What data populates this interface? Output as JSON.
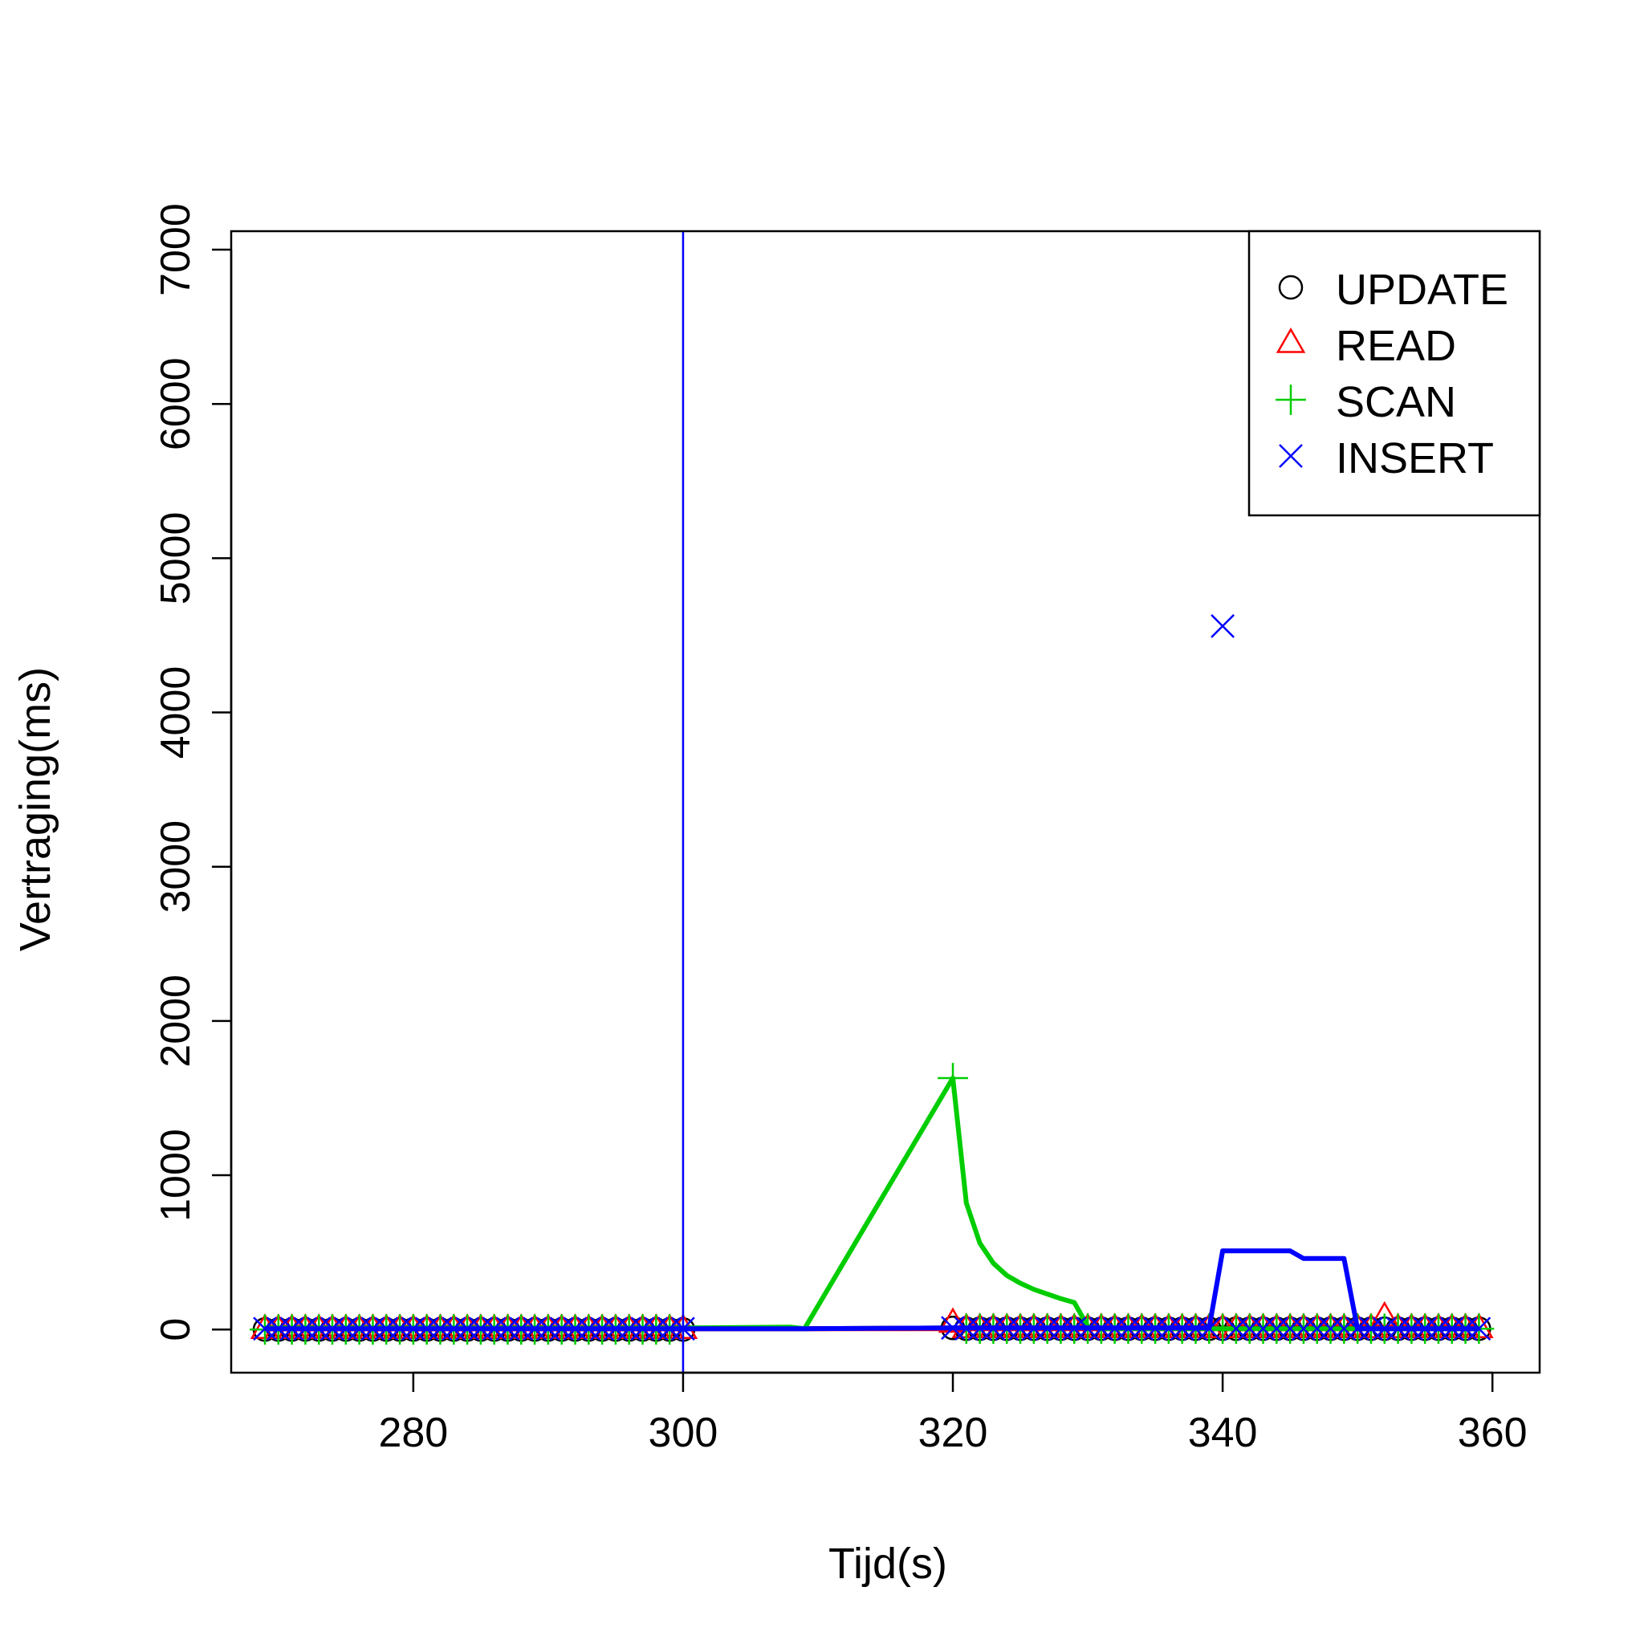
{
  "chart_data": {
    "type": "line",
    "title": "",
    "xlabel": "Tijd(s)",
    "ylabel": "Vertraging(ms)",
    "xlim": [
      266.5,
      363.5
    ],
    "ylim": [
      -280,
      7120
    ],
    "x_ticks": [
      280,
      300,
      320,
      340,
      360
    ],
    "y_ticks": [
      0,
      1000,
      2000,
      3000,
      4000,
      5000,
      6000,
      7000
    ],
    "x_tick_labels": [
      "280",
      "300",
      "320",
      "340",
      "360"
    ],
    "y_tick_labels": [
      "0",
      "1000",
      "2000",
      "3000",
      "4000",
      "5000",
      "6000",
      "7000"
    ],
    "grid": false,
    "legend_position": "top-right",
    "vline": {
      "x": 300,
      "color": "#0000ff"
    },
    "series": [
      {
        "name": "UPDATE",
        "color": "#000000",
        "marker": "circle",
        "points": [
          [
            269,
            0
          ],
          [
            270,
            0
          ],
          [
            271,
            0
          ],
          [
            272,
            0
          ],
          [
            273,
            0
          ],
          [
            274,
            0
          ],
          [
            275,
            0
          ],
          [
            276,
            0
          ],
          [
            277,
            0
          ],
          [
            278,
            0
          ],
          [
            279,
            0
          ],
          [
            280,
            0
          ],
          [
            281,
            0
          ],
          [
            282,
            0
          ],
          [
            283,
            0
          ],
          [
            284,
            0
          ],
          [
            285,
            0
          ],
          [
            286,
            0
          ],
          [
            287,
            0
          ],
          [
            288,
            0
          ],
          [
            289,
            0
          ],
          [
            290,
            0
          ],
          [
            291,
            0
          ],
          [
            292,
            0
          ],
          [
            293,
            0
          ],
          [
            294,
            0
          ],
          [
            295,
            0
          ],
          [
            296,
            0
          ],
          [
            297,
            0
          ],
          [
            298,
            0
          ],
          [
            299,
            0
          ],
          [
            300,
            0
          ],
          [
            320,
            10
          ],
          [
            321,
            5
          ],
          [
            322,
            5
          ],
          [
            323,
            5
          ],
          [
            324,
            5
          ],
          [
            325,
            5
          ],
          [
            326,
            5
          ],
          [
            327,
            5
          ],
          [
            328,
            5
          ],
          [
            329,
            5
          ],
          [
            330,
            5
          ],
          [
            331,
            5
          ],
          [
            332,
            5
          ],
          [
            333,
            5
          ],
          [
            334,
            5
          ],
          [
            335,
            5
          ],
          [
            336,
            5
          ],
          [
            337,
            5
          ],
          [
            338,
            5
          ],
          [
            339,
            5
          ],
          [
            340,
            5
          ],
          [
            341,
            5
          ],
          [
            342,
            5
          ],
          [
            343,
            5
          ],
          [
            344,
            5
          ],
          [
            345,
            5
          ],
          [
            346,
            5
          ],
          [
            347,
            5
          ],
          [
            348,
            5
          ],
          [
            349,
            5
          ],
          [
            350,
            5
          ],
          [
            351,
            5
          ],
          [
            352,
            5
          ],
          [
            353,
            5
          ],
          [
            354,
            5
          ],
          [
            355,
            5
          ],
          [
            356,
            5
          ],
          [
            357,
            5
          ],
          [
            358,
            5
          ],
          [
            359,
            5
          ]
        ],
        "line": [
          [
            269,
            5
          ],
          [
            300,
            5
          ],
          [
            309,
            5
          ],
          [
            320,
            10
          ],
          [
            339,
            10
          ],
          [
            340,
            10
          ],
          [
            359,
            10
          ]
        ]
      },
      {
        "name": "READ",
        "color": "#ff0000",
        "marker": "triangle",
        "points": [
          [
            269,
            0
          ],
          [
            270,
            0
          ],
          [
            271,
            0
          ],
          [
            272,
            0
          ],
          [
            273,
            0
          ],
          [
            274,
            0
          ],
          [
            275,
            0
          ],
          [
            276,
            0
          ],
          [
            277,
            0
          ],
          [
            278,
            0
          ],
          [
            279,
            0
          ],
          [
            280,
            0
          ],
          [
            281,
            0
          ],
          [
            282,
            0
          ],
          [
            283,
            0
          ],
          [
            284,
            0
          ],
          [
            285,
            0
          ],
          [
            286,
            0
          ],
          [
            287,
            0
          ],
          [
            288,
            0
          ],
          [
            289,
            0
          ],
          [
            290,
            0
          ],
          [
            291,
            0
          ],
          [
            292,
            0
          ],
          [
            293,
            0
          ],
          [
            294,
            0
          ],
          [
            295,
            0
          ],
          [
            296,
            0
          ],
          [
            297,
            0
          ],
          [
            298,
            0
          ],
          [
            299,
            0
          ],
          [
            300,
            0
          ],
          [
            320,
            40
          ],
          [
            321,
            5
          ],
          [
            322,
            5
          ],
          [
            323,
            5
          ],
          [
            324,
            5
          ],
          [
            325,
            5
          ],
          [
            326,
            5
          ],
          [
            327,
            5
          ],
          [
            328,
            5
          ],
          [
            329,
            5
          ],
          [
            330,
            5
          ],
          [
            331,
            5
          ],
          [
            332,
            5
          ],
          [
            333,
            5
          ],
          [
            334,
            5
          ],
          [
            335,
            5
          ],
          [
            336,
            5
          ],
          [
            337,
            5
          ],
          [
            338,
            5
          ],
          [
            339,
            5
          ],
          [
            340,
            5
          ],
          [
            341,
            5
          ],
          [
            342,
            5
          ],
          [
            343,
            5
          ],
          [
            344,
            5
          ],
          [
            345,
            5
          ],
          [
            346,
            5
          ],
          [
            347,
            5
          ],
          [
            348,
            5
          ],
          [
            349,
            5
          ],
          [
            350,
            5
          ],
          [
            351,
            5
          ],
          [
            352,
            80
          ],
          [
            353,
            5
          ],
          [
            354,
            5
          ],
          [
            355,
            5
          ],
          [
            356,
            5
          ],
          [
            357,
            5
          ],
          [
            358,
            5
          ],
          [
            359,
            5
          ]
        ],
        "line": [
          [
            269,
            5
          ],
          [
            300,
            5
          ],
          [
            309,
            5
          ],
          [
            320,
            5
          ],
          [
            359,
            5
          ]
        ]
      },
      {
        "name": "SCAN",
        "color": "#00cd00",
        "marker": "plus",
        "points": [
          [
            269,
            0
          ],
          [
            270,
            0
          ],
          [
            271,
            0
          ],
          [
            272,
            0
          ],
          [
            273,
            0
          ],
          [
            274,
            0
          ],
          [
            275,
            0
          ],
          [
            276,
            0
          ],
          [
            277,
            0
          ],
          [
            278,
            0
          ],
          [
            279,
            0
          ],
          [
            280,
            0
          ],
          [
            281,
            0
          ],
          [
            282,
            0
          ],
          [
            283,
            0
          ],
          [
            284,
            0
          ],
          [
            285,
            0
          ],
          [
            286,
            0
          ],
          [
            287,
            0
          ],
          [
            288,
            0
          ],
          [
            289,
            0
          ],
          [
            290,
            0
          ],
          [
            291,
            0
          ],
          [
            292,
            0
          ],
          [
            293,
            0
          ],
          [
            294,
            0
          ],
          [
            295,
            0
          ],
          [
            296,
            0
          ],
          [
            297,
            0
          ],
          [
            298,
            0
          ],
          [
            299,
            0
          ],
          [
            300,
            0
          ],
          [
            320,
            1630
          ],
          [
            321,
            5
          ],
          [
            322,
            5
          ],
          [
            323,
            5
          ],
          [
            324,
            5
          ],
          [
            325,
            5
          ],
          [
            326,
            5
          ],
          [
            327,
            5
          ],
          [
            328,
            5
          ],
          [
            329,
            5
          ],
          [
            330,
            5
          ],
          [
            331,
            5
          ],
          [
            332,
            5
          ],
          [
            333,
            5
          ],
          [
            334,
            5
          ],
          [
            335,
            5
          ],
          [
            336,
            5
          ],
          [
            337,
            5
          ],
          [
            338,
            5
          ],
          [
            339,
            5
          ],
          [
            340,
            5
          ],
          [
            341,
            5
          ],
          [
            342,
            5
          ],
          [
            343,
            5
          ],
          [
            344,
            5
          ],
          [
            345,
            5
          ],
          [
            346,
            5
          ],
          [
            347,
            5
          ],
          [
            348,
            5
          ],
          [
            349,
            5
          ],
          [
            350,
            5
          ],
          [
            351,
            5
          ],
          [
            352,
            5
          ],
          [
            353,
            5
          ],
          [
            354,
            5
          ],
          [
            355,
            5
          ],
          [
            356,
            5
          ],
          [
            357,
            5
          ],
          [
            358,
            5
          ],
          [
            359,
            5
          ]
        ],
        "line": [
          [
            269,
            10
          ],
          [
            300,
            10
          ],
          [
            308,
            15
          ],
          [
            309,
            5
          ],
          [
            320,
            1630
          ],
          [
            321,
            820
          ],
          [
            322,
            560
          ],
          [
            323,
            430
          ],
          [
            324,
            350
          ],
          [
            325,
            300
          ],
          [
            326,
            260
          ],
          [
            327,
            230
          ],
          [
            328,
            200
          ],
          [
            329,
            175
          ],
          [
            330,
            20
          ],
          [
            331,
            5
          ],
          [
            359,
            5
          ]
        ]
      },
      {
        "name": "INSERT",
        "color": "#0000ff",
        "marker": "x",
        "points": [
          [
            269,
            5
          ],
          [
            270,
            5
          ],
          [
            271,
            5
          ],
          [
            272,
            5
          ],
          [
            273,
            5
          ],
          [
            274,
            5
          ],
          [
            275,
            5
          ],
          [
            276,
            5
          ],
          [
            277,
            5
          ],
          [
            278,
            5
          ],
          [
            279,
            5
          ],
          [
            280,
            5
          ],
          [
            281,
            5
          ],
          [
            282,
            5
          ],
          [
            283,
            5
          ],
          [
            284,
            5
          ],
          [
            285,
            5
          ],
          [
            286,
            5
          ],
          [
            287,
            5
          ],
          [
            288,
            5
          ],
          [
            289,
            5
          ],
          [
            290,
            5
          ],
          [
            291,
            5
          ],
          [
            292,
            5
          ],
          [
            293,
            5
          ],
          [
            294,
            5
          ],
          [
            295,
            5
          ],
          [
            296,
            5
          ],
          [
            297,
            5
          ],
          [
            298,
            5
          ],
          [
            299,
            5
          ],
          [
            300,
            5
          ],
          [
            320,
            10
          ],
          [
            321,
            5
          ],
          [
            322,
            5
          ],
          [
            323,
            5
          ],
          [
            324,
            5
          ],
          [
            325,
            5
          ],
          [
            326,
            5
          ],
          [
            327,
            5
          ],
          [
            328,
            5
          ],
          [
            329,
            5
          ],
          [
            330,
            5
          ],
          [
            331,
            5
          ],
          [
            332,
            5
          ],
          [
            333,
            5
          ],
          [
            334,
            5
          ],
          [
            335,
            5
          ],
          [
            336,
            5
          ],
          [
            337,
            5
          ],
          [
            338,
            5
          ],
          [
            339,
            5
          ],
          [
            340,
            4560
          ],
          [
            341,
            5
          ],
          [
            342,
            5
          ],
          [
            343,
            5
          ],
          [
            344,
            5
          ],
          [
            345,
            5
          ],
          [
            346,
            5
          ],
          [
            347,
            5
          ],
          [
            348,
            5
          ],
          [
            349,
            5
          ],
          [
            350,
            5
          ],
          [
            351,
            5
          ],
          [
            352,
            5
          ],
          [
            353,
            5
          ],
          [
            354,
            5
          ],
          [
            355,
            5
          ],
          [
            356,
            5
          ],
          [
            357,
            5
          ],
          [
            358,
            5
          ],
          [
            359,
            5
          ]
        ],
        "line": [
          [
            269,
            5
          ],
          [
            300,
            5
          ],
          [
            309,
            5
          ],
          [
            320,
            10
          ],
          [
            339,
            10
          ],
          [
            340,
            510
          ],
          [
            345,
            510
          ],
          [
            346,
            460
          ],
          [
            349,
            460
          ],
          [
            350,
            5
          ],
          [
            359,
            5
          ]
        ]
      }
    ]
  }
}
